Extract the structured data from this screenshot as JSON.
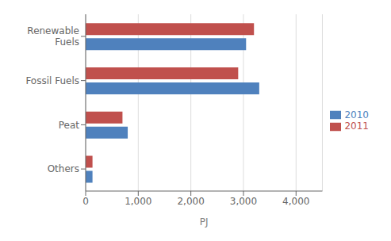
{
  "chart_data": {
    "type": "bar",
    "orientation": "horizontal",
    "categories": [
      "Others",
      "Peat",
      "Fossil Fuels",
      "Renewable\nFuels"
    ],
    "series": [
      {
        "name": "2011",
        "color": "#c0504d",
        "values": [
          130,
          700,
          2900,
          3200
        ]
      },
      {
        "name": "2010",
        "color": "#4f81bd",
        "values": [
          130,
          800,
          3300,
          3050
        ]
      }
    ],
    "xlabel": "PJ",
    "xlim": [
      0,
      4500
    ],
    "xticks": [
      0,
      {
        "value": 1000,
        "label": "1,000"
      },
      {
        "value": 2000,
        "label": "2,000"
      },
      {
        "value": 3000,
        "label": "3,000"
      },
      {
        "value": 4000,
        "label": "4,000"
      }
    ],
    "grid": true,
    "legend": "right"
  }
}
